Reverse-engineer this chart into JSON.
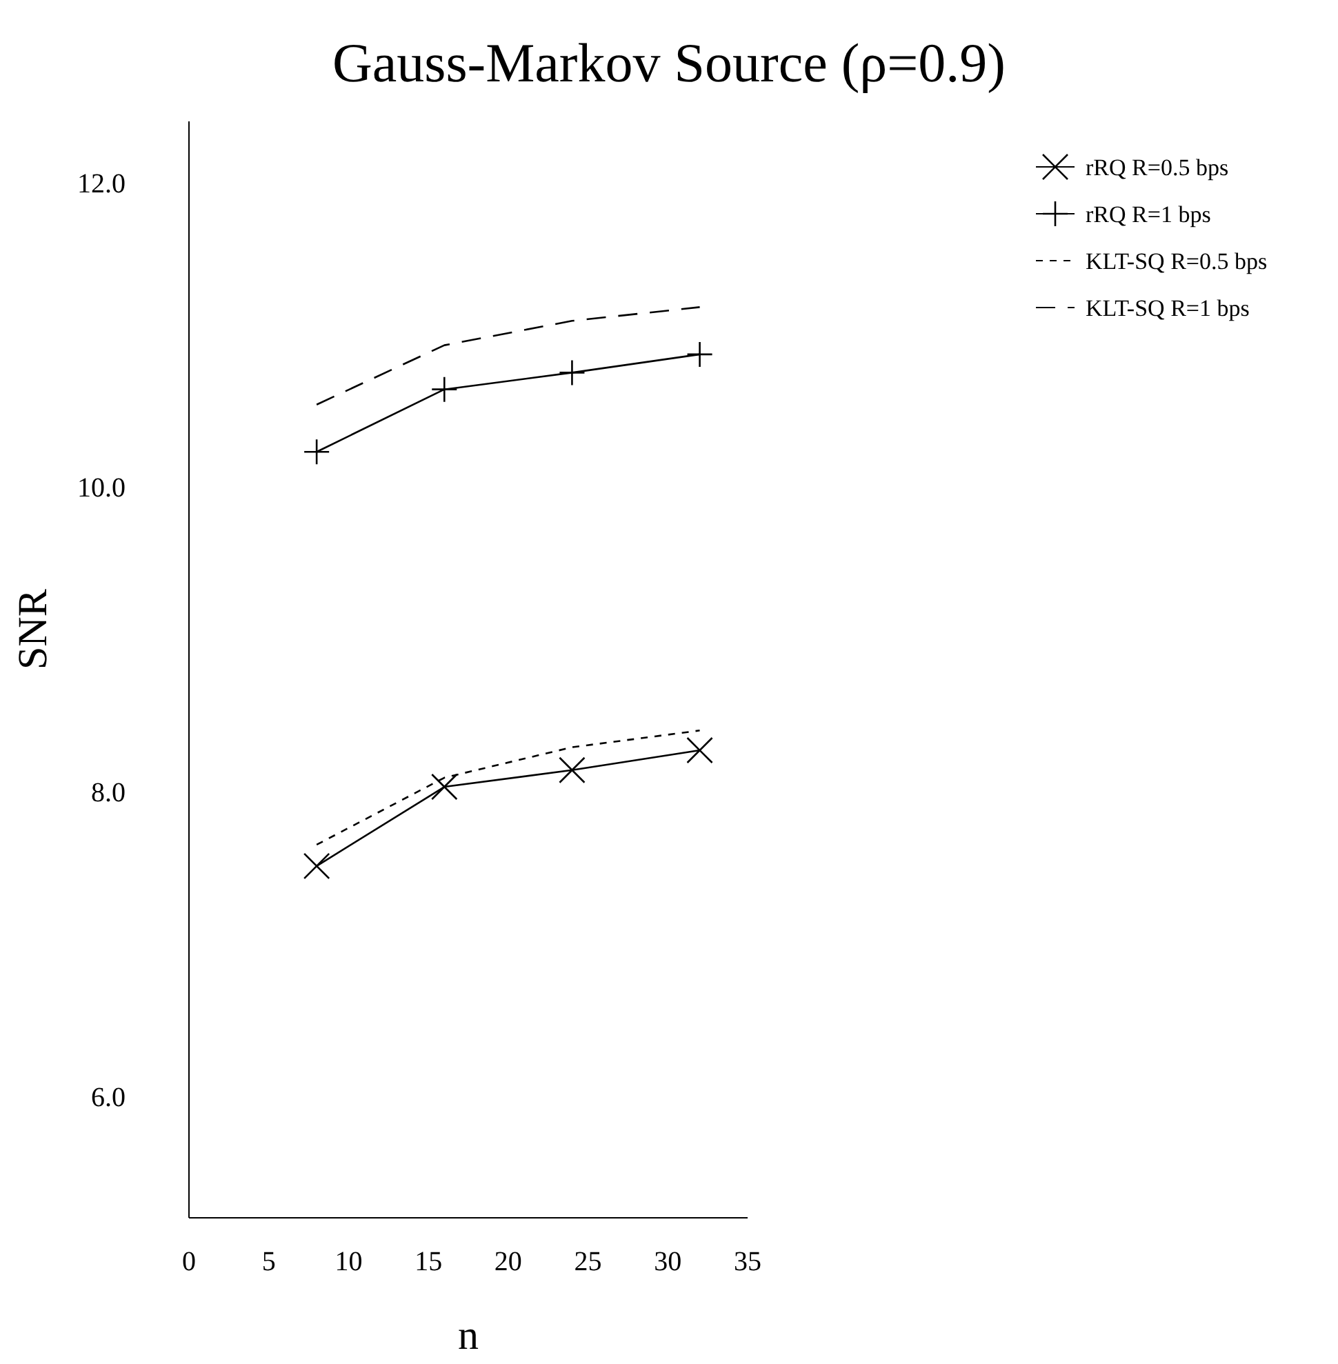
{
  "chart_data": {
    "type": "line",
    "title": "Gauss-Markov Source (ρ=0.9)",
    "xlabel": "n",
    "ylabel": "SNR",
    "x": [
      8,
      16,
      24,
      32
    ],
    "series": [
      {
        "name": "rRQ R=0.5 bps",
        "color": "#000000",
        "values": [
          7.51,
          8.03,
          8.14,
          8.27
        ],
        "marker": "cross",
        "line_style": "solid"
      },
      {
        "name": "rRQ R=1 bps",
        "color": "#000000",
        "values": [
          10.23,
          10.64,
          10.75,
          10.87
        ],
        "marker": "plus",
        "line_style": "solid"
      },
      {
        "name": "KLT-SQ R=0.5 bps",
        "color": "#000000",
        "values": [
          7.65,
          8.09,
          8.29,
          8.4
        ],
        "marker": "none",
        "line_style": "dotted"
      },
      {
        "name": "KLT-SQ R=1 bps",
        "color": "#000000",
        "values": [
          10.54,
          10.93,
          11.09,
          11.18
        ],
        "marker": "none",
        "line_style": "dashed"
      }
    ],
    "xlim": [
      0,
      35
    ],
    "xticks": [
      0,
      5,
      10,
      15,
      20,
      25,
      30,
      35
    ],
    "ylim": [
      5.2,
      12.4
    ],
    "yticks": [
      {
        "value": 6,
        "label": "6.0"
      },
      {
        "value": 8,
        "label": "8.0"
      },
      {
        "value": 10,
        "label": "10.0"
      },
      {
        "value": 12,
        "label": "12.0"
      }
    ],
    "grid": false,
    "legend": "top right"
  }
}
